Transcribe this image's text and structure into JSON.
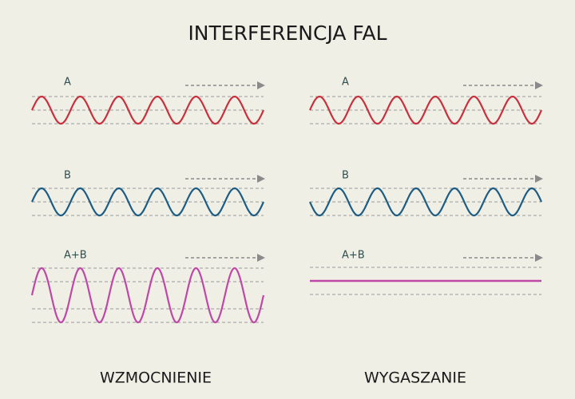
{
  "title": "INTERFERENCJA FAL",
  "panels": [
    {
      "caption": "WZMOCNIENIE",
      "rows": [
        {
          "label": "A"
        },
        {
          "label": "B"
        },
        {
          "label": "A+B"
        }
      ]
    },
    {
      "caption": "WYGASZANIE",
      "rows": [
        {
          "label": "A"
        },
        {
          "label": "B"
        },
        {
          "label": "A+B"
        }
      ]
    }
  ]
}
